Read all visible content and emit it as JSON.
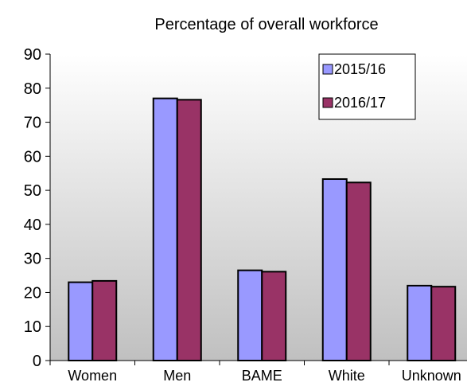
{
  "chart_data": {
    "type": "bar",
    "title": "Percentage of overall workforce",
    "xlabel": "",
    "ylabel": "",
    "categories": [
      "Women",
      "Men",
      "BAME",
      "White",
      "Unknown"
    ],
    "series": [
      {
        "name": "2015/16",
        "color": "#9999ff",
        "values": [
          23,
          77,
          26.5,
          53.3,
          22
        ]
      },
      {
        "name": "2016/17",
        "color": "#993366",
        "values": [
          23.4,
          76.6,
          26.1,
          52.3,
          21.7
        ]
      }
    ],
    "ylim": [
      0,
      90
    ],
    "yticks": [
      0,
      10,
      20,
      30,
      40,
      50,
      60,
      70,
      80,
      90
    ],
    "grid": false,
    "legend_position": "top-right",
    "plot_background": "gradient-gray"
  }
}
